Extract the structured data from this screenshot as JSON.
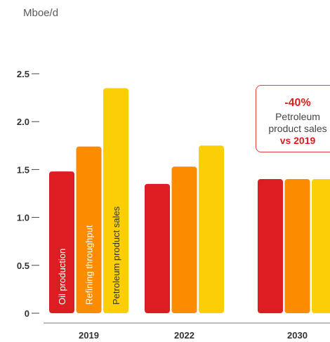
{
  "unit_label": "Mboe/d",
  "callout": {
    "change": "-40%",
    "description": "Petroleum\nproduct sales",
    "comparison": "vs 2019"
  },
  "chart_data": {
    "type": "bar",
    "ylabel": "Mboe/d",
    "ylim": [
      0,
      2.5
    ],
    "yticks": [
      "0",
      "0.5",
      "1.0",
      "1.5",
      "2.0",
      "2.5"
    ],
    "categories": [
      "2019",
      "2022",
      "2030"
    ],
    "series": [
      {
        "name": "Oil production",
        "color": "#dd1d21",
        "values": [
          1.48,
          1.35,
          1.4
        ]
      },
      {
        "name": "Refining throughput",
        "color": "#fb8c00",
        "values": [
          1.74,
          1.53,
          1.4
        ]
      },
      {
        "name": "Petroleum product sales",
        "color": "#fbce07",
        "values": [
          2.35,
          1.75,
          1.4
        ]
      }
    ]
  }
}
